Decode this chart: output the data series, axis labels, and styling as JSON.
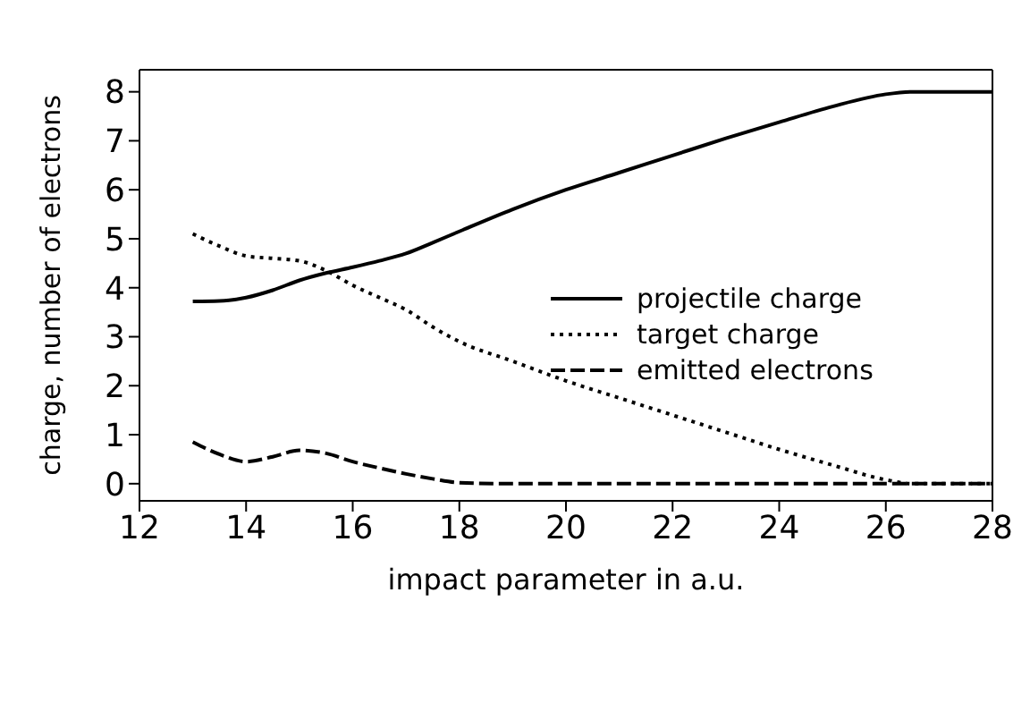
{
  "chart_data": {
    "type": "line",
    "xlabel": "impact parameter in a.u.",
    "ylabel": "charge, number of electrons",
    "xlim": [
      12,
      28
    ],
    "xticks": [
      12,
      14,
      16,
      18,
      20,
      22,
      24,
      26,
      28
    ],
    "ylim": [
      -0.35,
      8.45
    ],
    "yticks": [
      0,
      1,
      2,
      3,
      4,
      5,
      6,
      7,
      8
    ],
    "x": [
      13,
      13.5,
      14,
      14.5,
      15,
      15.5,
      16,
      16.5,
      17,
      17.5,
      18,
      19,
      20,
      21,
      22,
      23,
      24,
      25,
      26,
      26.5,
      27,
      28
    ],
    "series": [
      {
        "name": "projectile charge",
        "color": "#000000",
        "line_style": "solid",
        "values": [
          3.72,
          3.73,
          3.8,
          3.95,
          4.15,
          4.3,
          4.42,
          4.55,
          4.7,
          4.92,
          5.15,
          5.6,
          6.0,
          6.35,
          6.7,
          7.05,
          7.38,
          7.7,
          7.95,
          8.0,
          8.0,
          8.0
        ]
      },
      {
        "name": "target charge",
        "color": "#000000",
        "line_style": "dotted",
        "values": [
          5.1,
          4.85,
          4.65,
          4.6,
          4.55,
          4.35,
          4.05,
          3.8,
          3.55,
          3.2,
          2.9,
          2.5,
          2.1,
          1.75,
          1.4,
          1.05,
          0.7,
          0.38,
          0.08,
          0,
          0,
          0
        ]
      },
      {
        "name": "emitted electrons",
        "color": "#000000",
        "line_style": "dashed",
        "values": [
          0.85,
          0.6,
          0.45,
          0.55,
          0.68,
          0.62,
          0.45,
          0.32,
          0.2,
          0.1,
          0.02,
          0,
          0,
          0,
          0,
          0,
          0,
          0,
          0,
          0,
          0,
          0
        ]
      }
    ],
    "legend": "right",
    "grid": false,
    "marker": "none"
  }
}
